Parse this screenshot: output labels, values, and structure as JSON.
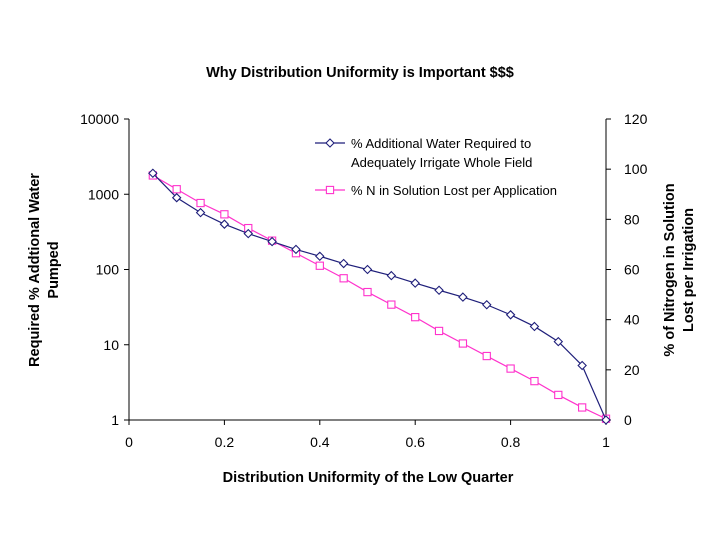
{
  "chart_data": {
    "type": "line",
    "title": "Why Distribution Uniformity is Important $$$",
    "xlabel": "Distribution Uniformity of the Low Quarter",
    "ylabel_left": [
      "Required % Addtional Water",
      "Pumped"
    ],
    "ylabel_right": [
      "% of Nitrogen in Solution",
      "Lost per Irrigation"
    ],
    "xlim": [
      0,
      1
    ],
    "x_ticks": [
      "0",
      "0.2",
      "0.4",
      "0.6",
      "0.8",
      "1"
    ],
    "x_tick_values": [
      0,
      0.2,
      0.4,
      0.6,
      0.8,
      1
    ],
    "ylim_left": [
      1,
      10000
    ],
    "y_left_scale": "log",
    "y_left_ticks": [
      "1",
      "10",
      "100",
      "1000",
      "10000"
    ],
    "y_left_tick_values": [
      1,
      10,
      100,
      1000,
      10000
    ],
    "ylim_right": [
      0,
      120
    ],
    "y_right_ticks": [
      "0",
      "20",
      "40",
      "60",
      "80",
      "100",
      "120"
    ],
    "y_right_tick_values": [
      0,
      20,
      40,
      60,
      80,
      100,
      120
    ],
    "x": [
      0.05,
      0.1,
      0.15,
      0.2,
      0.25,
      0.3,
      0.35,
      0.4,
      0.45,
      0.5,
      0.55,
      0.6,
      0.65,
      0.7,
      0.75,
      0.8,
      0.85,
      0.9,
      0.95,
      1.0
    ],
    "series": [
      {
        "name": "% Additional Water Required to Adequately Irrigate Whole Field",
        "legend_lines": [
          "% Additional Water Required to",
          "Adequately Irrigate Whole Field"
        ],
        "axis": "left",
        "marker": "diamond",
        "color": "#1f1f7a",
        "values": [
          1900,
          900,
          570,
          400,
          300,
          235,
          185,
          150,
          120,
          100,
          83,
          66,
          53,
          43,
          34,
          25,
          17.5,
          11,
          5.3,
          1
        ]
      },
      {
        "name": "% N in Solution Lost per Application",
        "legend_lines": [
          "% N in Solution Lost per Application"
        ],
        "axis": "right",
        "marker": "square",
        "color": "#ff33cc",
        "values": [
          97.5,
          92,
          86.5,
          82,
          76.5,
          71.5,
          66.5,
          61.5,
          56.5,
          51,
          46,
          41,
          35.5,
          30.5,
          25.5,
          20.5,
          15.5,
          10,
          5,
          0.5
        ]
      }
    ]
  }
}
